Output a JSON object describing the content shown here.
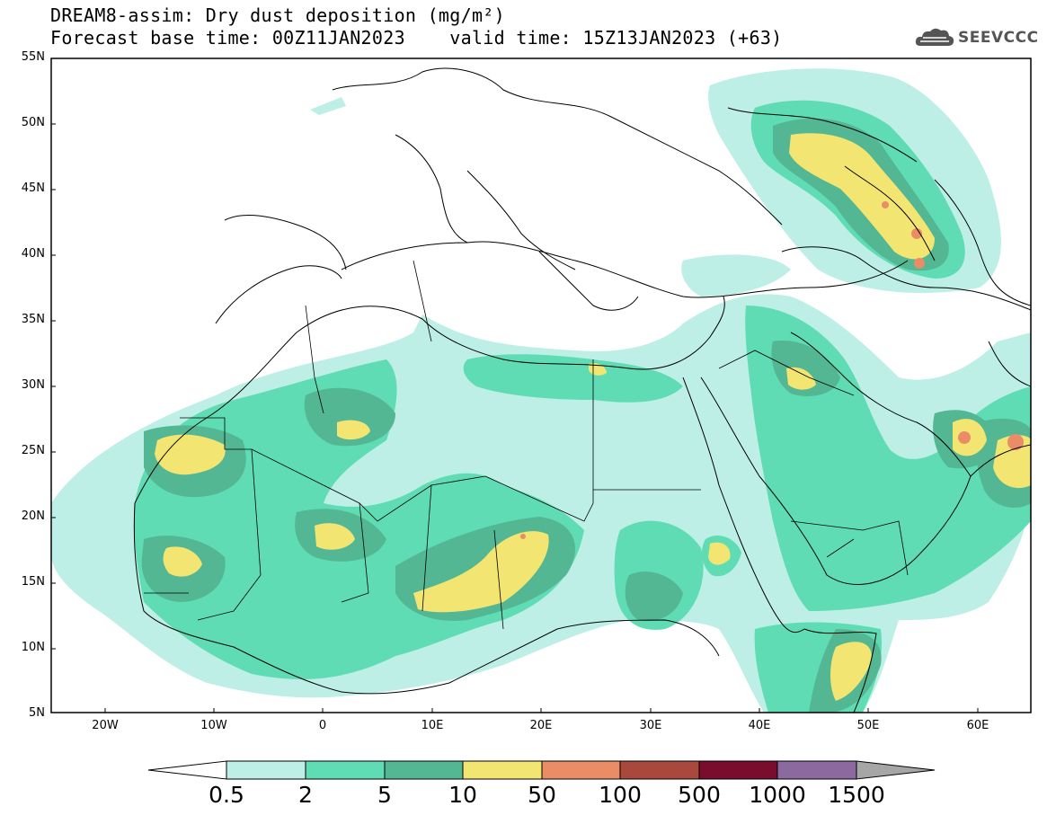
{
  "title": {
    "line1": "DREAM8-assim: Dry dust deposition (mg/m²)",
    "line2": "Forecast base time: 00Z11JAN2023    valid time: 15Z13JAN2023 (+63)"
  },
  "logo": {
    "text": "SEEVCCC",
    "icon": "cloud-logo-icon"
  },
  "axes": {
    "lat_labels": [
      "55N",
      "50N",
      "45N",
      "40N",
      "35N",
      "30N",
      "25N",
      "20N",
      "15N",
      "10N",
      "5N"
    ],
    "lon_labels": [
      "20W",
      "10W",
      "0",
      "10E",
      "20E",
      "30E",
      "40E",
      "50E",
      "60E"
    ]
  },
  "colorbar": {
    "labels": [
      "0.5",
      "2",
      "5",
      "10",
      "50",
      "100",
      "500",
      "1000",
      "1500"
    ],
    "colors": [
      "#ffffff",
      "#bdefe6",
      "#5fdcb3",
      "#54b794",
      "#f3e572",
      "#ea8d67",
      "#a9493d",
      "#7a0c2e",
      "#8c6aa0",
      "#a6a6a6"
    ]
  },
  "map": {
    "region": "North Africa, Middle East and Europe",
    "field": "Dry dust deposition (mg/m²)"
  }
}
